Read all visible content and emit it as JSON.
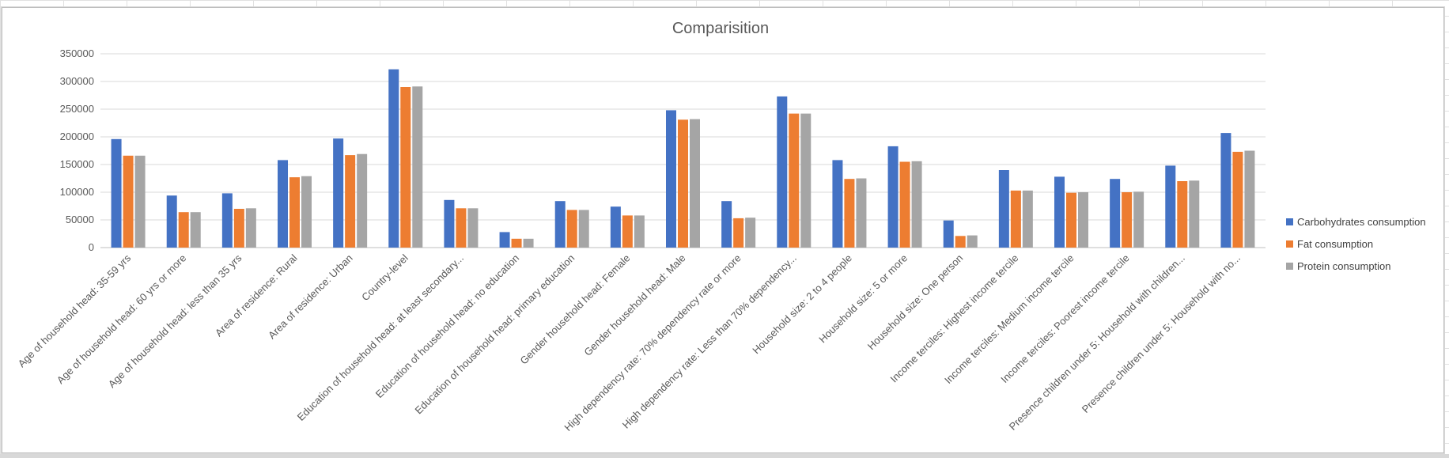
{
  "chart_data": {
    "type": "bar",
    "title": "Comparisition",
    "xlabel": "",
    "ylabel": "",
    "ylim": [
      0,
      350000
    ],
    "yticks": [
      0,
      50000,
      100000,
      150000,
      200000,
      250000,
      300000,
      350000
    ],
    "grid": true,
    "legend_position": "right",
    "categories": [
      "Age of household head: 35-59 yrs",
      "Age of household head: 60 yrs or more",
      "Age of household head: less than 35 yrs",
      "Area of residence: Rural",
      "Area of residence: Urban",
      "Country-level",
      "Education of household head: at least secondary...",
      "Education of household head: no education",
      "Education of household head: primary education",
      "Gender household head: Female",
      "Gender household head: Male",
      "High dependency rate: 70% dependency rate or more",
      "High dependency rate: Less than 70% dependency...",
      "Household size: 2 to 4 people",
      "Household size: 5 or more",
      "Household size: One person",
      "Income terciles: Highest income tercile",
      "Income terciles: Medium income tercile",
      "Income terciles: Poorest income tercile",
      "Presence children under 5: Household with children...",
      "Presence children under 5: Household with no..."
    ],
    "series": [
      {
        "name": "Carbohydrates consumption",
        "color": "#4472C4",
        "values": [
          196000,
          94000,
          98000,
          158000,
          197000,
          322000,
          86000,
          28000,
          84000,
          74000,
          248000,
          84000,
          273000,
          158000,
          183000,
          49000,
          140000,
          128000,
          124000,
          148000,
          207000
        ]
      },
      {
        "name": "Fat consumption",
        "color": "#ED7D31",
        "values": [
          166000,
          64000,
          70000,
          127000,
          167000,
          290000,
          71000,
          16000,
          68000,
          58000,
          231000,
          53000,
          242000,
          124000,
          155000,
          21000,
          103000,
          99000,
          100000,
          120000,
          173000
        ]
      },
      {
        "name": "Protein consumption",
        "color": "#A5A5A5",
        "values": [
          166000,
          64000,
          71000,
          129000,
          169000,
          291000,
          71000,
          16000,
          68000,
          58000,
          232000,
          54000,
          242000,
          125000,
          156000,
          22000,
          103000,
          100000,
          101000,
          121000,
          175000
        ]
      }
    ]
  }
}
